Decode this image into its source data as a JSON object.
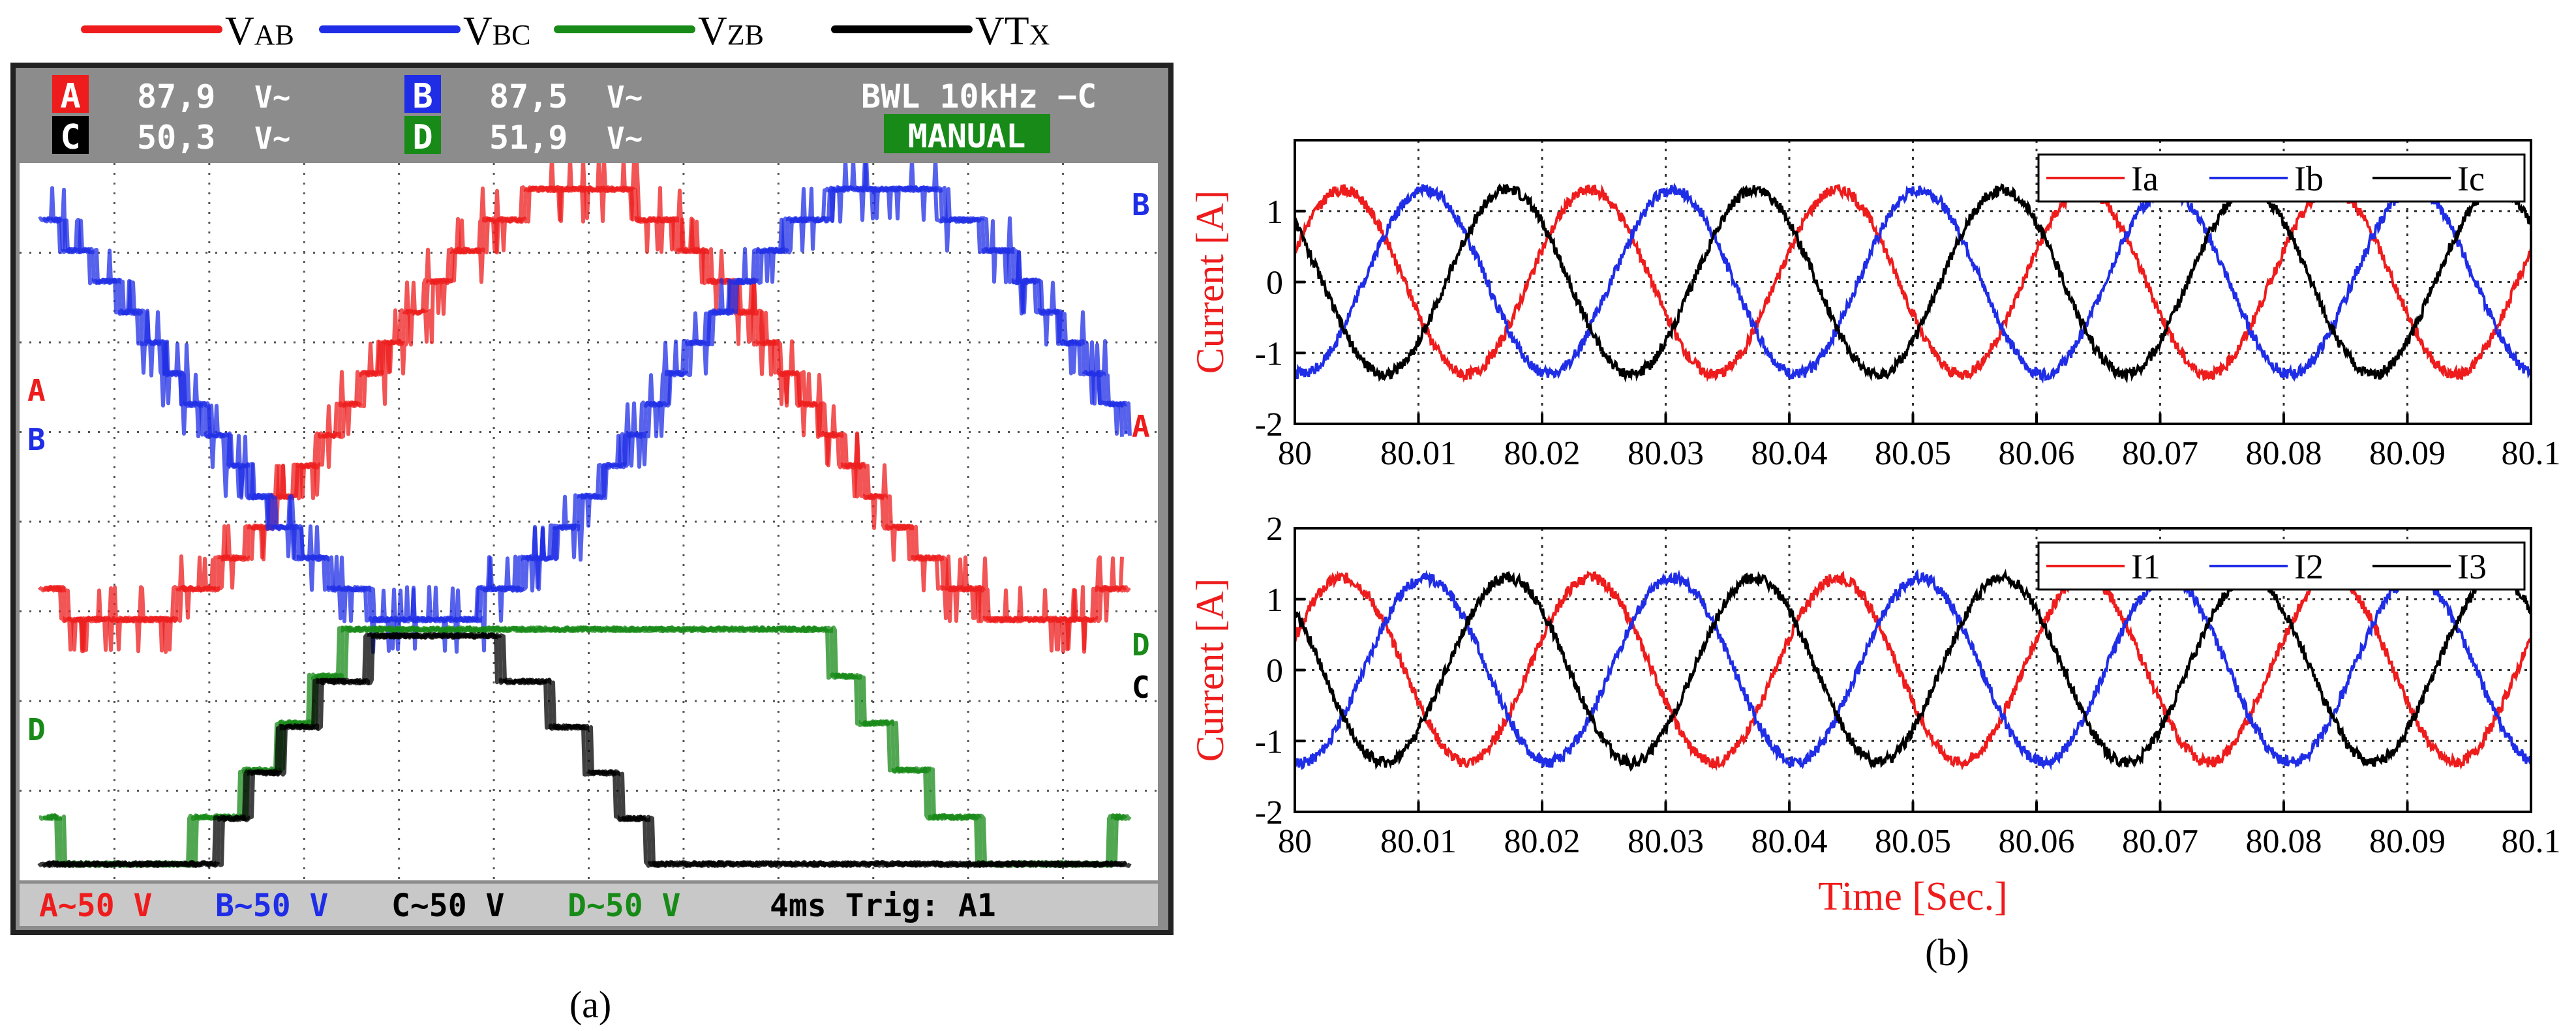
{
  "panel_a": {
    "legend": [
      {
        "main": "V",
        "sub": "AB",
        "color": "#ee1c1c"
      },
      {
        "main": "V",
        "sub": "BC",
        "color": "#1f2de6"
      },
      {
        "main": "V",
        "sub": "ZB",
        "color": "#178a17"
      },
      {
        "main": "VT",
        "sub": "X",
        "color": "#000000"
      }
    ],
    "scope": {
      "readouts": [
        {
          "channel": "A",
          "value": "87,9",
          "unit": "V~",
          "color": "#ee1c1c"
        },
        {
          "channel": "B",
          "value": "87,5",
          "unit": "V~",
          "color": "#1f2de6"
        },
        {
          "channel": "C",
          "value": "50,3",
          "unit": "V~",
          "color": "#000000"
        },
        {
          "channel": "D",
          "value": "51,9",
          "unit": "V~",
          "color": "#178a17"
        }
      ],
      "bwl": "BWL 10kHz",
      "mode": "MANUAL",
      "footer": {
        "scales": [
          {
            "text": "A~50 V",
            "color": "#ee1c1c"
          },
          {
            "text": "B~50 V",
            "color": "#1f2de6"
          },
          {
            "text": "C~50 V",
            "color": "#000000"
          },
          {
            "text": "D~50 V",
            "color": "#178a17"
          }
        ],
        "timebase": "4ms Trig: A1"
      },
      "trace_labels": {
        "A": "A",
        "B": "B",
        "C": "C",
        "D": "D"
      }
    },
    "caption": "(a)"
  },
  "chart_data": [
    {
      "type": "line",
      "title": "",
      "xlabel": "",
      "ylabel": "Current [A]",
      "xlim": [
        80,
        80.1
      ],
      "ylim": [
        -2,
        2
      ],
      "xticks": [
        "80",
        "80.01",
        "80.02",
        "80.03",
        "80.04",
        "80.05",
        "80.06",
        "80.07",
        "80.08",
        "80.09",
        "80.1"
      ],
      "yticks": [
        "-2",
        "-1",
        "0",
        "1",
        "2"
      ],
      "yticks_shown": [
        "-2",
        "-1",
        "0",
        "1"
      ],
      "grid": true,
      "legend_position": "top-right",
      "frequency_hz": 50,
      "series": [
        {
          "name": "Ia",
          "color": "#ee1c1c",
          "amplitude_a": 1.3,
          "phase_deg": 20
        },
        {
          "name": "Ib",
          "color": "#1f2de6",
          "amplitude_a": 1.3,
          "phase_deg": -100
        },
        {
          "name": "Ic",
          "color": "#000000",
          "amplitude_a": 1.3,
          "phase_deg": 140
        }
      ]
    },
    {
      "type": "line",
      "title": "",
      "xlabel": "Time [Sec.]",
      "ylabel": "Current [A]",
      "xlim": [
        80,
        80.1
      ],
      "ylim": [
        -2,
        2
      ],
      "xticks": [
        "80",
        "80.01",
        "80.02",
        "80.03",
        "80.04",
        "80.05",
        "80.06",
        "80.07",
        "80.08",
        "80.09",
        "80.1"
      ],
      "yticks": [
        "-2",
        "-1",
        "0",
        "1",
        "2"
      ],
      "yticks_shown": [
        "-2",
        "-1",
        "0",
        "1",
        "2"
      ],
      "grid": true,
      "legend_position": "top-right",
      "frequency_hz": 50,
      "series": [
        {
          "name": "I1",
          "color": "#ee1c1c",
          "amplitude_a": 1.3,
          "phase_deg": 20
        },
        {
          "name": "I2",
          "color": "#1f2de6",
          "amplitude_a": 1.3,
          "phase_deg": -100
        },
        {
          "name": "I3",
          "color": "#000000",
          "amplitude_a": 1.3,
          "phase_deg": 140
        }
      ]
    }
  ],
  "panel_b": {
    "caption": "(b)"
  }
}
